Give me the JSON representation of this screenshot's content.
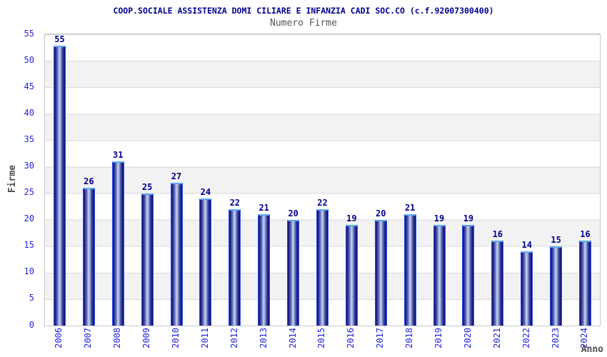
{
  "header": {
    "title": "COOP.SOCIALE ASSISTENZA DOMI CILIARE E INFANZIA CADI SOC.CO (c.f.92007300400)",
    "subtitle": "Numero Firme"
  },
  "chart_data": {
    "type": "bar",
    "title": "COOP.SOCIALE ASSISTENZA DOMI CILIARE E INFANZIA CADI SOC.CO (c.f.92007300400)",
    "subtitle": "Numero Firme",
    "categories": [
      "2006",
      "2007",
      "2008",
      "2009",
      "2010",
      "2011",
      "2012",
      "2013",
      "2014",
      "2015",
      "2016",
      "2017",
      "2018",
      "2019",
      "2020",
      "2021",
      "2022",
      "2023",
      "2024"
    ],
    "values": [
      55,
      26,
      31,
      25,
      27,
      24,
      22,
      21,
      20,
      22,
      19,
      20,
      21,
      19,
      19,
      16,
      14,
      15,
      16
    ],
    "xlabel": "Anno",
    "ylabel": "Firme",
    "ylim": [
      0,
      55
    ],
    "yticks": [
      0,
      5,
      10,
      15,
      20,
      25,
      30,
      35,
      40,
      45,
      50,
      55
    ],
    "grid": "horizontal gridlines every 5 units with alternating white/gray bands",
    "legend_position": "none",
    "bar_style": "vertical navy gradient cylinder with light blue top cap",
    "data_labels": "value shown above each bar"
  },
  "colors": {
    "title_text": "#00008b",
    "subtitle_text": "#555555",
    "tick_label": "#2525d5",
    "bar_value_label": "#00008b",
    "bar_dark": "#10106e",
    "bar_highlight": "#cdd5ee",
    "bar_side_border": "#2b50e8",
    "bar_top_cap": "#5fa8ee",
    "band_gray": "#f2f2f2",
    "gridline": "#d8d8d8",
    "plot_border": "#c9c9c9",
    "axis_title_text": "#4d4d4d",
    "background": "#ffffff"
  }
}
